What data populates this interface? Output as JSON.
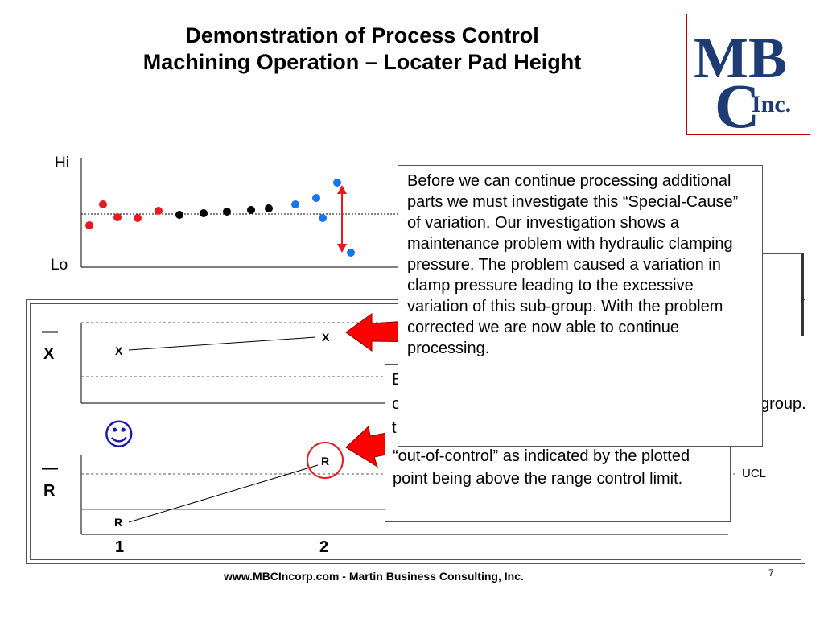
{
  "slide": {
    "title_line1": "Demonstration of Process Control",
    "title_line2": "Machining Operation – Locater Pad Height",
    "logo_text_top": "MB",
    "logo_text_c": "C",
    "logo_text_inc": "Inc.",
    "footer": "www.MBCIncorp.com  -  Martin Business Consulting, Inc.",
    "page_number": "7"
  },
  "run_chart": {
    "hi_label": "Hi",
    "lo_label": "Lo",
    "points_red": "#e8191f",
    "points_black": "#000000",
    "points_blue": "#1874e8"
  },
  "control_chart": {
    "xbar_label": "X",
    "xbar_bar": "—",
    "range_label": "R",
    "range_bar": "—",
    "point_x1": "X",
    "point_x2": "X",
    "point_r1": "R",
    "point_r2": "R",
    "subgroup1": "1",
    "subgroup2": "2",
    "ucl_label": "UCL",
    "smiley": "☺",
    "arrow_color": "#ff0000",
    "circle_color": "#e8191f"
  },
  "callouts": {
    "back_fragment_1": "B",
    "back_fragment_2": "c",
    "back_fragment_3": "t",
    "back_fragment_group": "group.",
    "back_visible_text": "“out-of-control” as indicated by the plotted point being above the range control limit.",
    "front_text": "Before we can continue processing additional parts we must investigate this “Special-Cause” of variation.  Our investigation shows a maintenance problem with hydraulic clamping pressure.  The problem caused a variation in clamp pressure leading to the excessive variation of this sub-group.  With the problem corrected we are now able to continue processing."
  }
}
